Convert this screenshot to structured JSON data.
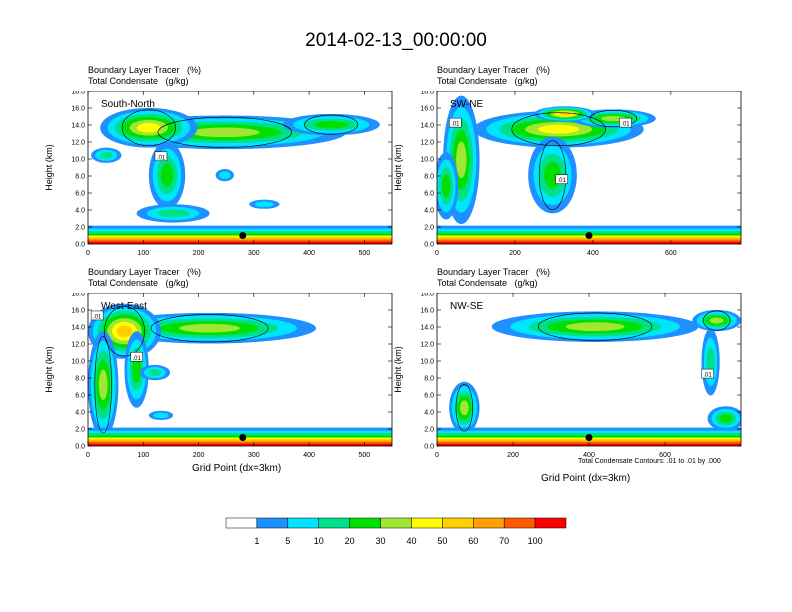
{
  "title": "2014-02-13_00:00:00",
  "field_labels": [
    "Boundary Layer Tracer   (%)",
    "Total Condensate   (g/kg)"
  ],
  "y_axis_label": "Height (km)",
  "x_axis_label": "Grid Point (dx=3km)",
  "contour_note": "Total Condensate Contours: .01 to .01 by .000",
  "colorbar": {
    "levels": [
      "1",
      "5",
      "10",
      "20",
      "30",
      "40",
      "50",
      "60",
      "70",
      "100"
    ],
    "colors": [
      "#ffffff",
      "#1e90ff",
      "#00e5ff",
      "#00e08a",
      "#00e000",
      "#a0e632",
      "#ffff00",
      "#ffd000",
      "#ffa000",
      "#ff5a00",
      "#ff0000"
    ]
  },
  "chart_data": [
    {
      "type": "heatmap",
      "name": "South-North",
      "xlim": [
        0,
        550
      ],
      "ylim": [
        0,
        18
      ],
      "xticks": [
        "0",
        "100",
        "200",
        "300",
        "400",
        "500"
      ],
      "yticks": [
        "0.0",
        "2.0",
        "4.0",
        "6.0",
        "8.0",
        "10.0",
        "12.0",
        "14.0",
        "16.0",
        "18.0"
      ],
      "contour_labels": [
        ".01"
      ],
      "marker": {
        "x": 280,
        "y": 1.0
      }
    },
    {
      "type": "heatmap",
      "name": "SW-NE",
      "xlim": [
        0,
        780
      ],
      "ylim": [
        0,
        18
      ],
      "xticks": [
        "0",
        "200",
        "400",
        "600"
      ],
      "yticks": [
        "0.0",
        "2.0",
        "4.0",
        "6.0",
        "8.0",
        "10.0",
        "12.0",
        "14.0",
        "16.0",
        "18.0"
      ],
      "contour_labels": [
        ".01",
        ".01",
        ".01"
      ],
      "marker": {
        "x": 390,
        "y": 1.0
      }
    },
    {
      "type": "heatmap",
      "name": "West-East",
      "xlim": [
        0,
        550
      ],
      "ylim": [
        0,
        18
      ],
      "xticks": [
        "0",
        "100",
        "200",
        "300",
        "400",
        "500"
      ],
      "yticks": [
        "0.0",
        "2.0",
        "4.0",
        "6.0",
        "8.0",
        "10.0",
        "12.0",
        "14.0",
        "16.0",
        "18.0"
      ],
      "contour_labels": [
        ".01",
        ".01"
      ],
      "marker": {
        "x": 280,
        "y": 1.0
      }
    },
    {
      "type": "heatmap",
      "name": "NW-SE",
      "xlim": [
        0,
        800
      ],
      "ylim": [
        0,
        18
      ],
      "xticks": [
        "0",
        "200",
        "400",
        "600"
      ],
      "yticks": [
        "0.0",
        "2.0",
        "4.0",
        "6.0",
        "8.0",
        "10.0",
        "12.0",
        "14.0",
        "16.0",
        "18.0"
      ],
      "contour_labels": [
        ".01"
      ],
      "marker": {
        "x": 400,
        "y": 1.0
      }
    }
  ]
}
